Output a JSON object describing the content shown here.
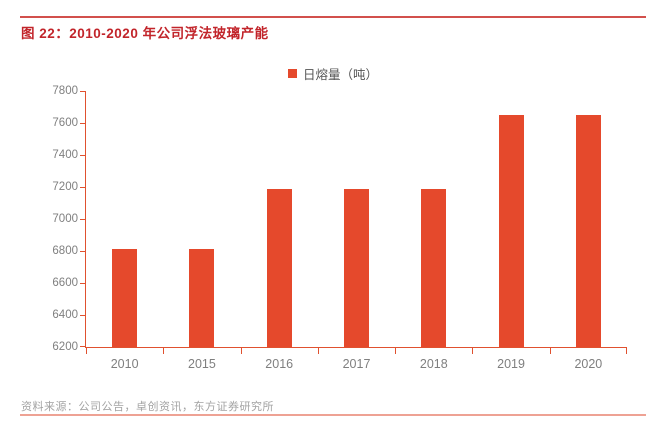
{
  "header": {
    "title": "图 22：2010-2020 年公司浮法玻璃产能"
  },
  "chart_data": {
    "type": "bar",
    "title": "图 22：2010-2020 年公司浮法玻璃产能",
    "legend": "日熔量（吨）",
    "categories": [
      "2010",
      "2015",
      "2016",
      "2017",
      "2018",
      "2019",
      "2020"
    ],
    "values": [
      6810,
      6810,
      7185,
      7185,
      7185,
      7650,
      7650
    ],
    "xlabel": "",
    "ylabel": "",
    "ylim": [
      6200,
      7800
    ],
    "ytick_step": 200,
    "grid": false,
    "legend_position": "top-center",
    "bar_color": "#e5492c",
    "axis_color": "#e0512f"
  },
  "footer": {
    "source": "资料来源：公司公告，卓创资讯，东方证券研究所"
  },
  "colors": {
    "title_red": "#c2252b",
    "top_rule_red": "#d2504c",
    "footer_rule_salmon": "#eea294",
    "tick_label_gray": "#7f7f7f",
    "source_gray": "#a3a3a3"
  }
}
